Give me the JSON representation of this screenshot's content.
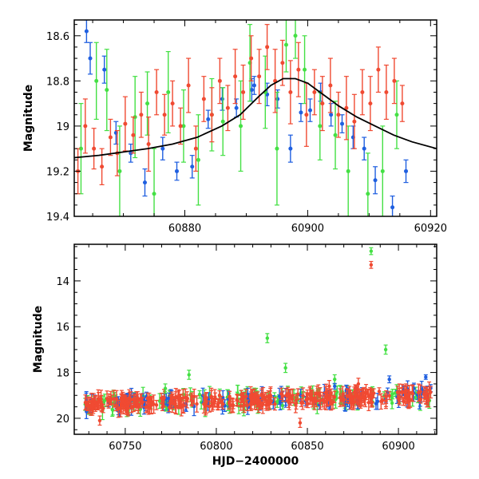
{
  "chart_data": [
    {
      "type": "scatter",
      "title": "",
      "xlabel": "",
      "ylabel": "Magnitude",
      "xlim": [
        60862,
        60921
      ],
      "ylim": [
        19.4,
        18.53
      ],
      "y_inverted": true,
      "xticks": [
        60880,
        60900,
        60920
      ],
      "yticks": [
        18.6,
        18.8,
        19,
        19.2,
        19.4
      ],
      "ytick_labels": [
        "18.6",
        "18.8",
        "19",
        "19.2",
        "19.4"
      ],
      "colors": {
        "blue": "#1f5fe0",
        "green": "#44e044",
        "red": "#f04a32",
        "model": "#000000"
      },
      "model_curve": {
        "description_visible": "smooth black fitted curve peaking near x=60897",
        "points": [
          [
            60862,
            19.14
          ],
          [
            60866,
            19.13
          ],
          [
            60870,
            19.115
          ],
          [
            60874,
            19.1
          ],
          [
            60878,
            19.08
          ],
          [
            60882,
            19.05
          ],
          [
            60886,
            19.0
          ],
          [
            60889,
            18.95
          ],
          [
            60892,
            18.87
          ],
          [
            60894,
            18.82
          ],
          [
            60896,
            18.79
          ],
          [
            60898,
            18.79
          ],
          [
            60900,
            18.81
          ],
          [
            60902,
            18.85
          ],
          [
            60905,
            18.91
          ],
          [
            60908,
            18.96
          ],
          [
            60911,
            19.0
          ],
          [
            60914,
            19.04
          ],
          [
            60917,
            19.07
          ],
          [
            60921,
            19.1
          ]
        ]
      },
      "series": [
        {
          "color": "blue",
          "points": [
            [
              60864.0,
              18.58,
              0.05
            ],
            [
              60864.6,
              18.7,
              0.07
            ],
            [
              60866.9,
              18.75,
              0.06
            ],
            [
              60868.8,
              19.03,
              0.05
            ],
            [
              60871.2,
              19.12,
              0.04
            ],
            [
              60873.5,
              19.25,
              0.06
            ],
            [
              60876.4,
              19.1,
              0.05
            ],
            [
              60878.7,
              19.2,
              0.04
            ],
            [
              60881.2,
              19.18,
              0.05
            ],
            [
              60883.8,
              18.97,
              0.04
            ],
            [
              60886.1,
              18.88,
              0.05
            ],
            [
              60888.4,
              18.92,
              0.04
            ],
            [
              60890.9,
              18.84,
              0.05
            ],
            [
              60891.3,
              18.82,
              0.04
            ],
            [
              60893.4,
              18.86,
              0.05
            ],
            [
              60895.1,
              18.88,
              0.04
            ],
            [
              60897.2,
              19.1,
              0.06
            ],
            [
              60898.9,
              18.94,
              0.04
            ],
            [
              60900.4,
              18.93,
              0.05
            ],
            [
              60902.1,
              18.85,
              0.04
            ],
            [
              60903.8,
              18.95,
              0.05
            ],
            [
              60905.6,
              18.99,
              0.04
            ],
            [
              60907.4,
              19.05,
              0.05
            ],
            [
              60909.2,
              19.1,
              0.05
            ],
            [
              60911.0,
              19.24,
              0.06
            ],
            [
              60913.8,
              19.36,
              0.05
            ],
            [
              60916.0,
              19.2,
              0.05
            ]
          ]
        },
        {
          "color": "green",
          "points": [
            [
              60863.1,
              19.1,
              0.2
            ],
            [
              60865.6,
              18.8,
              0.17
            ],
            [
              60867.3,
              18.84,
              0.18
            ],
            [
              60869.4,
              19.2,
              0.2
            ],
            [
              60871.9,
              18.96,
              0.18
            ],
            [
              60873.9,
              18.9,
              0.14
            ],
            [
              60875.0,
              19.3,
              0.2
            ],
            [
              60877.3,
              18.85,
              0.18
            ],
            [
              60879.8,
              19.0,
              0.16
            ],
            [
              60882.2,
              19.15,
              0.2
            ],
            [
              60884.4,
              18.95,
              0.16
            ],
            [
              60886.2,
              18.98,
              0.15
            ],
            [
              60889.1,
              19.0,
              0.2
            ],
            [
              60890.6,
              18.72,
              0.17
            ],
            [
              60893.1,
              18.85,
              0.16
            ],
            [
              60895.0,
              19.1,
              0.25
            ],
            [
              60896.5,
              18.64,
              0.12
            ],
            [
              60898.0,
              18.6,
              0.1
            ],
            [
              60899.5,
              18.75,
              0.15
            ],
            [
              60902.0,
              19.0,
              0.15
            ],
            [
              60904.5,
              19.04,
              0.15
            ],
            [
              60906.6,
              19.2,
              0.2
            ],
            [
              60909.8,
              19.3,
              0.18
            ],
            [
              60912.2,
              19.2,
              0.2
            ],
            [
              60914.5,
              18.95,
              0.15
            ]
          ]
        },
        {
          "color": "red",
          "points": [
            [
              60862.6,
              19.2,
              0.1
            ],
            [
              60863.8,
              19.0,
              0.12
            ],
            [
              60865.2,
              19.1,
              0.09
            ],
            [
              60866.5,
              19.18,
              0.08
            ],
            [
              60867.9,
              19.05,
              0.08
            ],
            [
              60869.0,
              19.12,
              0.1
            ],
            [
              60870.3,
              18.99,
              0.12
            ],
            [
              60871.6,
              19.04,
              0.08
            ],
            [
              60872.9,
              18.95,
              0.1
            ],
            [
              60874.1,
              19.08,
              0.12
            ],
            [
              60875.4,
              18.85,
              0.1
            ],
            [
              60876.7,
              18.95,
              0.09
            ],
            [
              60878.0,
              18.9,
              0.1
            ],
            [
              60879.3,
              19.0,
              0.08
            ],
            [
              60880.6,
              18.82,
              0.12
            ],
            [
              60881.8,
              19.1,
              0.1
            ],
            [
              60883.1,
              18.88,
              0.1
            ],
            [
              60884.4,
              18.95,
              0.12
            ],
            [
              60885.7,
              18.8,
              0.1
            ],
            [
              60887.0,
              18.92,
              0.1
            ],
            [
              60888.2,
              18.78,
              0.12
            ],
            [
              60889.5,
              18.85,
              0.12
            ],
            [
              60890.8,
              18.7,
              0.1
            ],
            [
              60892.1,
              18.78,
              0.12
            ],
            [
              60893.4,
              18.65,
              0.1
            ],
            [
              60894.7,
              18.8,
              0.14
            ],
            [
              60895.9,
              18.72,
              0.1
            ],
            [
              60897.2,
              18.85,
              0.14
            ],
            [
              60898.5,
              18.75,
              0.12
            ],
            [
              60899.8,
              18.95,
              0.14
            ],
            [
              60901.1,
              18.85,
              0.1
            ],
            [
              60902.4,
              18.9,
              0.12
            ],
            [
              60903.7,
              18.82,
              0.12
            ],
            [
              60905.0,
              18.95,
              0.1
            ],
            [
              60906.3,
              18.92,
              0.14
            ],
            [
              60907.6,
              18.98,
              0.12
            ],
            [
              60908.9,
              18.85,
              0.1
            ],
            [
              60910.2,
              18.9,
              0.12
            ],
            [
              60911.5,
              18.75,
              0.1
            ],
            [
              60912.8,
              18.85,
              0.12
            ],
            [
              60914.1,
              18.8,
              0.1
            ],
            [
              60915.4,
              18.9,
              0.08
            ]
          ]
        }
      ]
    },
    {
      "type": "scatter",
      "title": "",
      "xlabel": "HJD−2400000",
      "ylabel": "Magnitude",
      "xlim": [
        60722,
        60921
      ],
      "ylim": [
        20.7,
        12.4
      ],
      "y_inverted": true,
      "xticks": [
        60750,
        60800,
        60850,
        60900
      ],
      "yticks": [
        14,
        16,
        18,
        20
      ],
      "ytick_labels": [
        "14",
        "16",
        "18",
        "20"
      ],
      "colors": {
        "blue": "#1f5fe0",
        "green": "#44e044",
        "red": "#f04a32",
        "model": "#000000"
      },
      "outliers": [
        {
          "color": "green",
          "points": [
            [
              60885,
              12.7,
              0.15
            ],
            [
              60828,
              16.5,
              0.2
            ],
            [
              60838,
              17.8,
              0.2
            ],
            [
              60785,
              18.1,
              0.2
            ],
            [
              60893,
              17.0,
              0.2
            ],
            [
              60865,
              18.3,
              0.2
            ],
            [
              60772,
              18.7,
              0.2
            ]
          ]
        },
        {
          "color": "red",
          "points": [
            [
              60885,
              13.3,
              0.15
            ],
            [
              60862,
              18.6,
              0.25
            ],
            [
              60878,
              18.5,
              0.25
            ],
            [
              60736,
              20.1,
              0.2
            ],
            [
              60846,
              20.2,
              0.2
            ]
          ]
        },
        {
          "color": "blue",
          "points": [
            [
              60895,
              18.3,
              0.15
            ],
            [
              60915,
              18.2,
              0.1
            ],
            [
              60865,
              18.6,
              0.12
            ]
          ]
        }
      ],
      "baseline": {
        "x_range": [
          60728,
          60918
        ],
        "mag_start": 19.4,
        "mag_end": 19.0,
        "scatter": 0.5
      }
    }
  ]
}
